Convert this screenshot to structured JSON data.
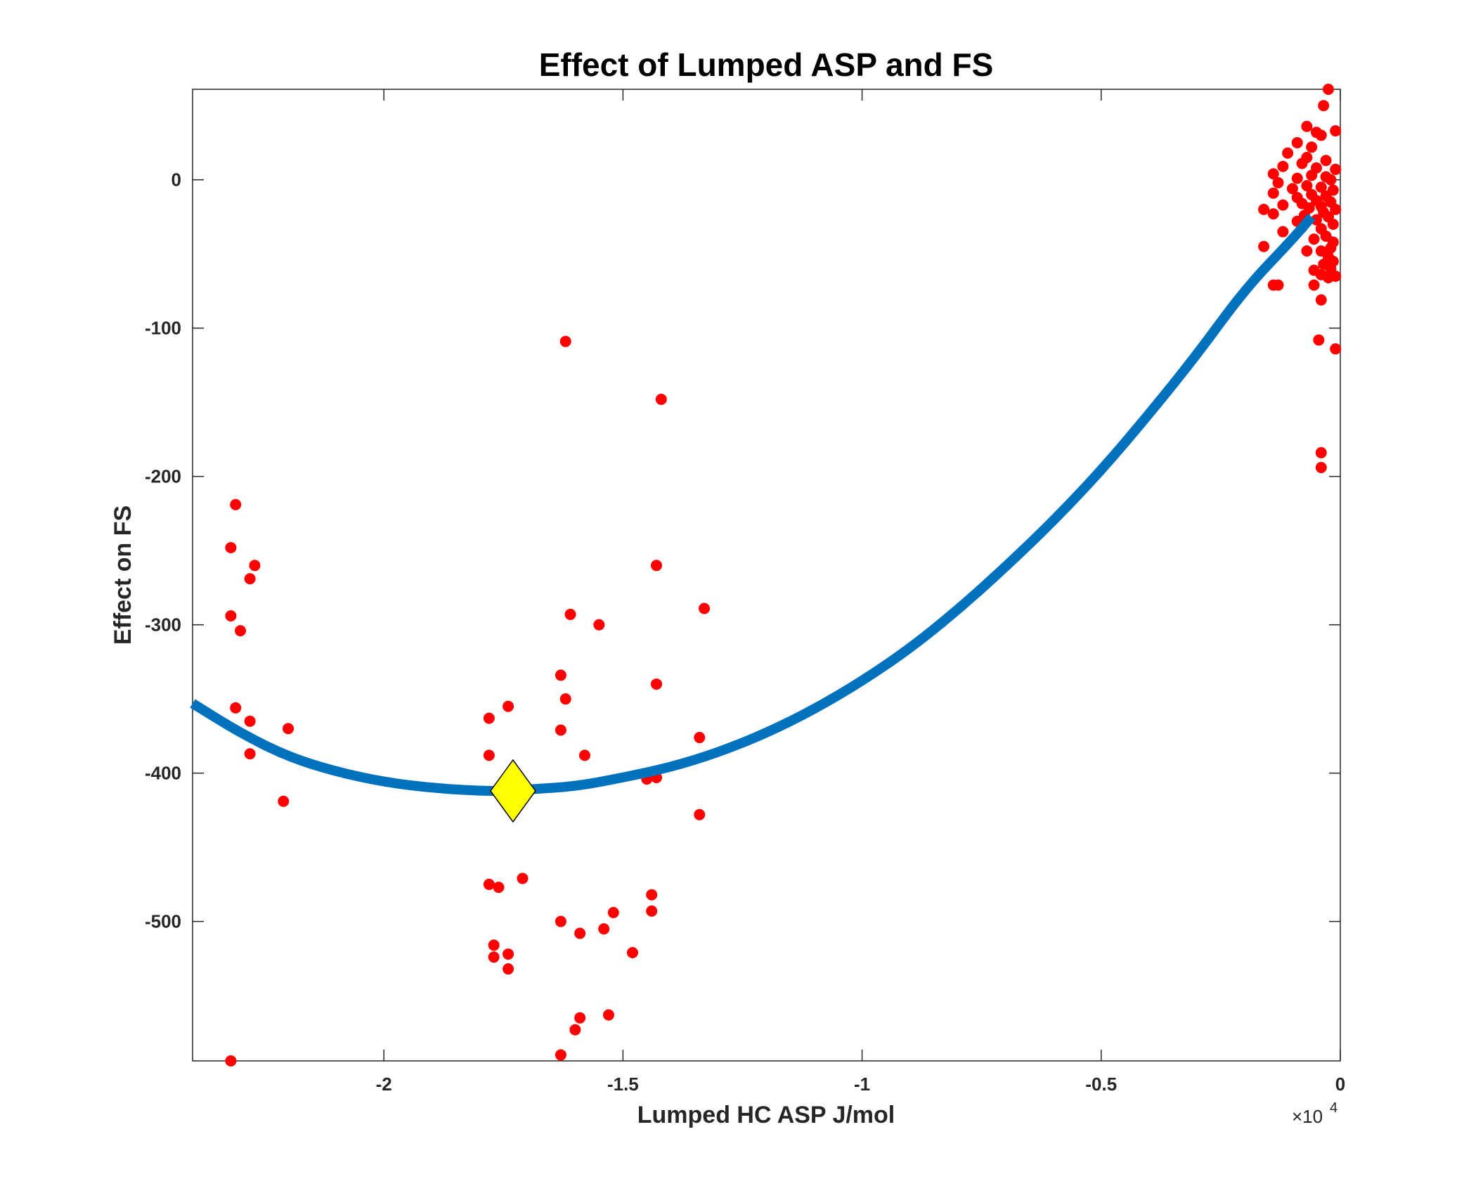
{
  "chart_data": {
    "type": "scatter",
    "title": "Effect of Lumped ASP and FS",
    "xlabel": "Lumped HC ASP J/mol",
    "ylabel": "Effect on FS",
    "x_exponent_label": "×10",
    "x_exponent_power": "4",
    "xlim": [
      -24000,
      0
    ],
    "ylim": [
      -594,
      61
    ],
    "x_ticks": [
      {
        "value": -20000,
        "label": "-2"
      },
      {
        "value": -15000,
        "label": "-1.5"
      },
      {
        "value": -10000,
        "label": "-1"
      },
      {
        "value": -5000,
        "label": "-0.5"
      },
      {
        "value": 0,
        "label": "0"
      }
    ],
    "y_ticks": [
      {
        "value": 0,
        "label": "0"
      },
      {
        "value": -100,
        "label": "-100"
      },
      {
        "value": -200,
        "label": "-200"
      },
      {
        "value": -300,
        "label": "-300"
      },
      {
        "value": -400,
        "label": "-400"
      },
      {
        "value": -500,
        "label": "-500"
      }
    ],
    "grid": false,
    "colors": {
      "points": "#ff0000",
      "curve": "#0072bd",
      "marker": "#ffff00",
      "axes": "#262626"
    },
    "series": [
      {
        "kind": "scatter",
        "color": "#ff0000",
        "points": [
          [
            -23200,
            -248
          ],
          [
            -23100,
            -219
          ],
          [
            -23200,
            -294
          ],
          [
            -23000,
            -304
          ],
          [
            -22800,
            -269
          ],
          [
            -22700,
            -260
          ],
          [
            -23100,
            -356
          ],
          [
            -22800,
            -365
          ],
          [
            -22800,
            -387
          ],
          [
            -22000,
            -370
          ],
          [
            -22100,
            -419
          ],
          [
            -23200,
            -594
          ],
          [
            -16200,
            -109
          ],
          [
            -14200,
            -148
          ],
          [
            -14300,
            -260
          ],
          [
            -16100,
            -293
          ],
          [
            -15500,
            -300
          ],
          [
            -13300,
            -289
          ],
          [
            -16300,
            -334
          ],
          [
            -16200,
            -350
          ],
          [
            -14300,
            -340
          ],
          [
            -17400,
            -355
          ],
          [
            -17800,
            -363
          ],
          [
            -16300,
            -371
          ],
          [
            -17800,
            -388
          ],
          [
            -15800,
            -388
          ],
          [
            -13400,
            -376
          ],
          [
            -14500,
            -404
          ],
          [
            -14300,
            -403
          ],
          [
            -13400,
            -428
          ],
          [
            -17800,
            -475
          ],
          [
            -17600,
            -477
          ],
          [
            -17100,
            -471
          ],
          [
            -14400,
            -482
          ],
          [
            -14400,
            -493
          ],
          [
            -15200,
            -494
          ],
          [
            -16300,
            -500
          ],
          [
            -15900,
            -508
          ],
          [
            -15400,
            -505
          ],
          [
            -14800,
            -521
          ],
          [
            -17700,
            -516
          ],
          [
            -17700,
            -524
          ],
          [
            -17400,
            -522
          ],
          [
            -17400,
            -532
          ],
          [
            -15900,
            -565
          ],
          [
            -15300,
            -563
          ],
          [
            -16000,
            -573
          ],
          [
            -16300,
            -590
          ],
          [
            -250,
            61
          ],
          [
            -350,
            50
          ],
          [
            -700,
            36
          ],
          [
            -100,
            33
          ],
          [
            -500,
            32
          ],
          [
            -400,
            30
          ],
          [
            -900,
            25
          ],
          [
            -600,
            22
          ],
          [
            -1100,
            18
          ],
          [
            -700,
            15
          ],
          [
            -300,
            13
          ],
          [
            -800,
            11
          ],
          [
            -1200,
            9
          ],
          [
            -500,
            8
          ],
          [
            -100,
            7
          ],
          [
            -1400,
            4
          ],
          [
            -600,
            3
          ],
          [
            -300,
            2
          ],
          [
            -900,
            1
          ],
          [
            -200,
            0
          ],
          [
            -1300,
            -2
          ],
          [
            -700,
            -4
          ],
          [
            -400,
            -5
          ],
          [
            -1000,
            -6
          ],
          [
            -150,
            -7
          ],
          [
            -1400,
            -9
          ],
          [
            -600,
            -10
          ],
          [
            -300,
            -11
          ],
          [
            -900,
            -12
          ],
          [
            -500,
            -14
          ],
          [
            -200,
            -15
          ],
          [
            -800,
            -16
          ],
          [
            -1200,
            -17
          ],
          [
            -400,
            -18
          ],
          [
            -650,
            -19
          ],
          [
            -100,
            -20
          ],
          [
            -1600,
            -20
          ],
          [
            -350,
            -22
          ],
          [
            -1400,
            -23
          ],
          [
            -750,
            -24
          ],
          [
            -250,
            -25
          ],
          [
            -500,
            -27
          ],
          [
            -900,
            -28
          ],
          [
            -150,
            -30
          ],
          [
            -800,
            -32
          ],
          [
            -400,
            -33
          ],
          [
            -1200,
            -35
          ],
          [
            -300,
            -38
          ],
          [
            -550,
            -40
          ],
          [
            -150,
            -42
          ],
          [
            -1600,
            -45
          ],
          [
            -200,
            -46
          ],
          [
            -400,
            -48
          ],
          [
            -700,
            -48
          ],
          [
            -250,
            -52
          ],
          [
            -150,
            -55
          ],
          [
            -350,
            -57
          ],
          [
            -200,
            -60
          ],
          [
            -550,
            -61
          ],
          [
            -400,
            -64
          ],
          [
            -250,
            -66
          ],
          [
            -100,
            -65
          ],
          [
            -1400,
            -71
          ],
          [
            -1300,
            -71
          ],
          [
            -550,
            -71
          ],
          [
            -400,
            -81
          ],
          [
            -450,
            -108
          ],
          [
            -100,
            -114
          ],
          [
            -400,
            -184
          ],
          [
            -400,
            -194
          ]
        ]
      },
      {
        "kind": "curve",
        "color": "#0072bd",
        "x_start": -24000,
        "x_end": -600,
        "points": [
          [
            -24000,
            -353
          ],
          [
            -23000,
            -373
          ],
          [
            -22000,
            -389
          ],
          [
            -21000,
            -399
          ],
          [
            -20000,
            -406
          ],
          [
            -19000,
            -410
          ],
          [
            -18000,
            -412
          ],
          [
            -17300,
            -412
          ],
          [
            -17000,
            -411
          ],
          [
            -16000,
            -409
          ],
          [
            -15000,
            -403
          ],
          [
            -14000,
            -396
          ],
          [
            -13000,
            -386
          ],
          [
            -12000,
            -373
          ],
          [
            -11000,
            -357
          ],
          [
            -10000,
            -338
          ],
          [
            -9000,
            -316
          ],
          [
            -8000,
            -290
          ],
          [
            -7000,
            -261
          ],
          [
            -6000,
            -230
          ],
          [
            -5000,
            -196
          ],
          [
            -4000,
            -158
          ],
          [
            -3000,
            -118
          ],
          [
            -2000,
            -74
          ],
          [
            -1000,
            -40
          ],
          [
            -600,
            -25
          ]
        ]
      },
      {
        "kind": "marker",
        "shape": "diamond",
        "color": "#ffff00",
        "points": [
          [
            -17300,
            -412
          ]
        ]
      }
    ]
  }
}
